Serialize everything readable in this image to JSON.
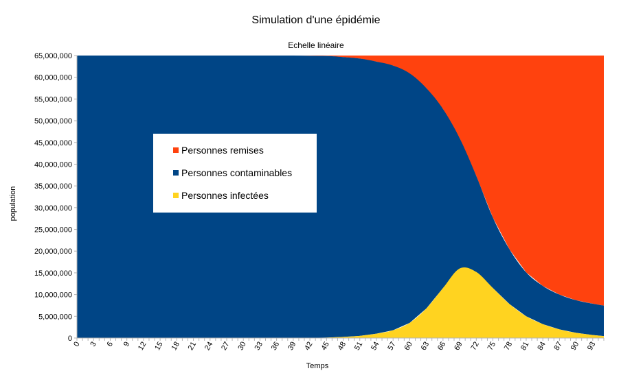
{
  "chart_data": {
    "type": "area",
    "stacked": true,
    "title": "Simulation d'une épidémie",
    "subtitle": "Echelle linéaire",
    "xlabel": "Temps",
    "ylabel": "population",
    "ylim": [
      0,
      65000000
    ],
    "yticks": [
      "0",
      "5,000,000",
      "10,000,000",
      "15,000,000",
      "20,000,000",
      "25,000,000",
      "30,000,000",
      "35,000,000",
      "40,000,000",
      "45,000,000",
      "50,000,000",
      "55,000,000",
      "60,000,000",
      "65,000,000"
    ],
    "xticks": [
      "0",
      "3",
      "6",
      "9",
      "12",
      "15",
      "18",
      "21",
      "24",
      "27",
      "30",
      "33",
      "36",
      "39",
      "42",
      "45",
      "48",
      "51",
      "54",
      "57",
      "60",
      "63",
      "66",
      "69",
      "72",
      "75",
      "78",
      "81",
      "84",
      "87",
      "90",
      "93"
    ],
    "x": [
      0,
      3,
      6,
      9,
      12,
      15,
      18,
      21,
      24,
      27,
      30,
      33,
      36,
      39,
      42,
      45,
      48,
      51,
      54,
      57,
      60,
      63,
      66,
      69,
      72,
      75,
      78,
      81,
      84,
      87,
      90,
      93,
      95
    ],
    "series": [
      {
        "name": "Personnes infectées",
        "color": "#ffd320",
        "values": [
          0,
          0,
          0,
          0,
          0,
          0,
          0,
          0,
          0,
          0,
          0,
          0,
          0,
          0,
          50000,
          100000,
          250000,
          500000,
          1000000,
          1800000,
          3500000,
          6800000,
          11500000,
          16000000,
          15200000,
          11500000,
          7800000,
          5000000,
          3200000,
          2000000,
          1200000,
          700000,
          450000
        ]
      },
      {
        "name": "Personnes contaminables",
        "color": "#004586",
        "values": [
          65000000,
          65000000,
          65000000,
          65000000,
          65000000,
          65000000,
          65000000,
          65000000,
          65000000,
          65000000,
          65000000,
          65000000,
          65000000,
          65000000,
          64900000,
          64800000,
          64400000,
          63800000,
          62600000,
          60900000,
          57400000,
          50700000,
          41200000,
          30000000,
          22100000,
          16200000,
          12600000,
          10100000,
          8800000,
          8000000,
          7500000,
          7200000,
          7000000
        ]
      },
      {
        "name": "Personnes remises",
        "color": "#ff420e",
        "values": [
          0,
          0,
          0,
          0,
          0,
          0,
          0,
          0,
          0,
          0,
          0,
          0,
          0,
          0,
          50000,
          100000,
          350000,
          700000,
          1400000,
          2300000,
          4100000,
          7500000,
          12300000,
          19000000,
          27700000,
          37300000,
          44600000,
          49900000,
          53000000,
          55000000,
          56300000,
          57100000,
          57550000
        ]
      }
    ],
    "legend_order": [
      "Personnes remises",
      "Personnes contaminables",
      "Personnes infectées"
    ],
    "legend_position": "left-middle",
    "grid": false
  }
}
